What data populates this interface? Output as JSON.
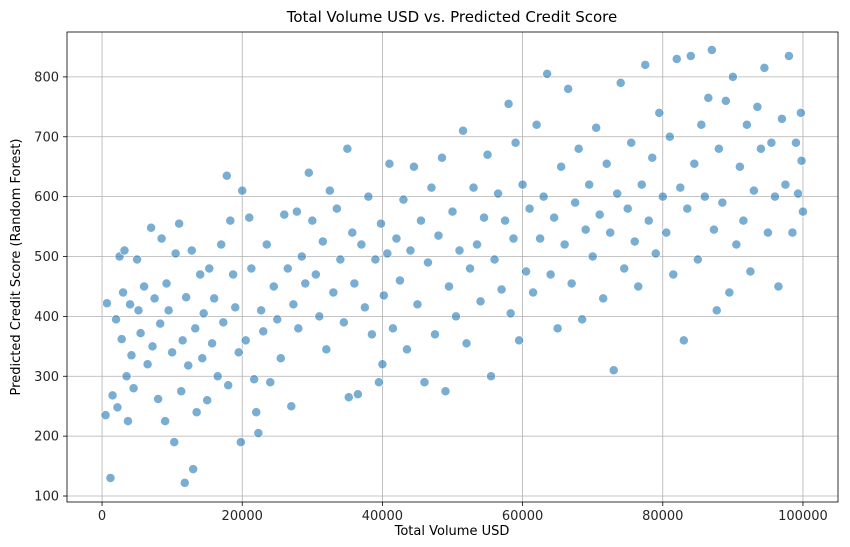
{
  "chart_data": {
    "type": "scatter",
    "title": "Total Volume USD vs. Predicted Credit Score",
    "xlabel": "Total Volume USD",
    "ylabel": "Predicted Credit Score (Random Forest)",
    "xlim": [
      -5000,
      105000
    ],
    "ylim": [
      90,
      875
    ],
    "xticks": [
      0,
      20000,
      40000,
      60000,
      80000,
      100000
    ],
    "yticks": [
      100,
      200,
      300,
      400,
      500,
      600,
      700,
      800
    ],
    "grid": true,
    "point_color": "#1f77b4",
    "point_edge_color": "#ffffff",
    "series": [
      {
        "points": [
          [
            500,
            235
          ],
          [
            700,
            422
          ],
          [
            1200,
            130
          ],
          [
            1500,
            268
          ],
          [
            2000,
            395
          ],
          [
            2200,
            248
          ],
          [
            2500,
            500
          ],
          [
            2800,
            362
          ],
          [
            3000,
            440
          ],
          [
            3200,
            510
          ],
          [
            3500,
            300
          ],
          [
            3700,
            225
          ],
          [
            4000,
            420
          ],
          [
            4200,
            335
          ],
          [
            4500,
            280
          ],
          [
            5000,
            495
          ],
          [
            5200,
            410
          ],
          [
            5500,
            372
          ],
          [
            6000,
            450
          ],
          [
            6500,
            320
          ],
          [
            7000,
            548
          ],
          [
            7200,
            350
          ],
          [
            7500,
            430
          ],
          [
            8000,
            262
          ],
          [
            8300,
            388
          ],
          [
            8500,
            530
          ],
          [
            9000,
            225
          ],
          [
            9200,
            455
          ],
          [
            9500,
            410
          ],
          [
            10000,
            340
          ],
          [
            10300,
            190
          ],
          [
            10500,
            505
          ],
          [
            11000,
            555
          ],
          [
            11300,
            275
          ],
          [
            11500,
            360
          ],
          [
            11800,
            122
          ],
          [
            12000,
            432
          ],
          [
            12300,
            318
          ],
          [
            12800,
            510
          ],
          [
            13000,
            145
          ],
          [
            13300,
            380
          ],
          [
            13500,
            240
          ],
          [
            14000,
            470
          ],
          [
            14300,
            330
          ],
          [
            14500,
            405
          ],
          [
            15000,
            260
          ],
          [
            15300,
            480
          ],
          [
            15700,
            355
          ],
          [
            16000,
            430
          ],
          [
            16500,
            300
          ],
          [
            17000,
            520
          ],
          [
            17300,
            390
          ],
          [
            17800,
            635
          ],
          [
            18000,
            285
          ],
          [
            18300,
            560
          ],
          [
            18700,
            470
          ],
          [
            19000,
            415
          ],
          [
            19500,
            340
          ],
          [
            19800,
            190
          ],
          [
            20000,
            610
          ],
          [
            20500,
            360
          ],
          [
            21000,
            565
          ],
          [
            21300,
            480
          ],
          [
            21700,
            295
          ],
          [
            22000,
            240
          ],
          [
            22300,
            205
          ],
          [
            22700,
            410
          ],
          [
            23000,
            375
          ],
          [
            23500,
            520
          ],
          [
            24000,
            290
          ],
          [
            24500,
            450
          ],
          [
            25000,
            395
          ],
          [
            25500,
            330
          ],
          [
            26000,
            570
          ],
          [
            26500,
            480
          ],
          [
            27000,
            250
          ],
          [
            27300,
            420
          ],
          [
            27800,
            575
          ],
          [
            28000,
            380
          ],
          [
            28500,
            500
          ],
          [
            29000,
            455
          ],
          [
            29500,
            640
          ],
          [
            30000,
            560
          ],
          [
            30500,
            470
          ],
          [
            31000,
            400
          ],
          [
            31500,
            525
          ],
          [
            32000,
            345
          ],
          [
            32500,
            610
          ],
          [
            33000,
            440
          ],
          [
            33500,
            580
          ],
          [
            34000,
            495
          ],
          [
            34500,
            390
          ],
          [
            35000,
            680
          ],
          [
            35200,
            265
          ],
          [
            35700,
            540
          ],
          [
            36000,
            455
          ],
          [
            36500,
            270
          ],
          [
            37000,
            520
          ],
          [
            37500,
            415
          ],
          [
            38000,
            600
          ],
          [
            38500,
            370
          ],
          [
            39000,
            495
          ],
          [
            39500,
            290
          ],
          [
            39800,
            555
          ],
          [
            40000,
            320
          ],
          [
            40200,
            435
          ],
          [
            40700,
            505
          ],
          [
            41000,
            655
          ],
          [
            41500,
            380
          ],
          [
            42000,
            530
          ],
          [
            42500,
            460
          ],
          [
            43000,
            595
          ],
          [
            43500,
            345
          ],
          [
            44000,
            510
          ],
          [
            44500,
            650
          ],
          [
            45000,
            420
          ],
          [
            45500,
            560
          ],
          [
            46000,
            290
          ],
          [
            46500,
            490
          ],
          [
            47000,
            615
          ],
          [
            47500,
            370
          ],
          [
            48000,
            535
          ],
          [
            48500,
            665
          ],
          [
            49000,
            275
          ],
          [
            49500,
            450
          ],
          [
            50000,
            575
          ],
          [
            50500,
            400
          ],
          [
            51000,
            510
          ],
          [
            51500,
            710
          ],
          [
            52000,
            355
          ],
          [
            52500,
            480
          ],
          [
            53000,
            615
          ],
          [
            53500,
            520
          ],
          [
            54000,
            425
          ],
          [
            54500,
            565
          ],
          [
            55000,
            670
          ],
          [
            55500,
            300
          ],
          [
            56000,
            495
          ],
          [
            56500,
            605
          ],
          [
            57000,
            445
          ],
          [
            57500,
            560
          ],
          [
            58000,
            755
          ],
          [
            58300,
            405
          ],
          [
            58700,
            530
          ],
          [
            59000,
            690
          ],
          [
            59500,
            360
          ],
          [
            60000,
            620
          ],
          [
            60500,
            475
          ],
          [
            61000,
            580
          ],
          [
            61500,
            440
          ],
          [
            62000,
            720
          ],
          [
            62500,
            530
          ],
          [
            63000,
            600
          ],
          [
            63500,
            805
          ],
          [
            64000,
            470
          ],
          [
            64500,
            565
          ],
          [
            65000,
            380
          ],
          [
            65500,
            650
          ],
          [
            66000,
            520
          ],
          [
            66500,
            780
          ],
          [
            67000,
            455
          ],
          [
            67500,
            590
          ],
          [
            68000,
            680
          ],
          [
            68500,
            395
          ],
          [
            69000,
            545
          ],
          [
            69500,
            620
          ],
          [
            70000,
            500
          ],
          [
            70500,
            715
          ],
          [
            71000,
            570
          ],
          [
            71500,
            430
          ],
          [
            72000,
            655
          ],
          [
            72500,
            540
          ],
          [
            73000,
            310
          ],
          [
            73500,
            605
          ],
          [
            74000,
            790
          ],
          [
            74500,
            480
          ],
          [
            75000,
            580
          ],
          [
            75500,
            690
          ],
          [
            76000,
            525
          ],
          [
            76500,
            450
          ],
          [
            77000,
            620
          ],
          [
            77500,
            820
          ],
          [
            78000,
            560
          ],
          [
            78500,
            665
          ],
          [
            79000,
            505
          ],
          [
            79500,
            740
          ],
          [
            80000,
            600
          ],
          [
            80500,
            540
          ],
          [
            81000,
            700
          ],
          [
            81500,
            470
          ],
          [
            82000,
            830
          ],
          [
            82500,
            615
          ],
          [
            83000,
            360
          ],
          [
            83500,
            580
          ],
          [
            84000,
            835
          ],
          [
            84500,
            655
          ],
          [
            85000,
            495
          ],
          [
            85500,
            720
          ],
          [
            86000,
            600
          ],
          [
            86500,
            765
          ],
          [
            87000,
            845
          ],
          [
            87300,
            545
          ],
          [
            87700,
            410
          ],
          [
            88000,
            680
          ],
          [
            88500,
            590
          ],
          [
            89000,
            760
          ],
          [
            89500,
            440
          ],
          [
            90000,
            800
          ],
          [
            90500,
            520
          ],
          [
            91000,
            650
          ],
          [
            91500,
            560
          ],
          [
            92000,
            720
          ],
          [
            92500,
            475
          ],
          [
            93000,
            610
          ],
          [
            93500,
            750
          ],
          [
            94000,
            680
          ],
          [
            94500,
            815
          ],
          [
            95000,
            540
          ],
          [
            95500,
            690
          ],
          [
            96000,
            600
          ],
          [
            96500,
            450
          ],
          [
            97000,
            730
          ],
          [
            97500,
            620
          ],
          [
            98000,
            835
          ],
          [
            98500,
            540
          ],
          [
            99000,
            690
          ],
          [
            99300,
            605
          ],
          [
            99700,
            740
          ],
          [
            100000,
            575
          ],
          [
            99800,
            660
          ]
        ]
      }
    ]
  }
}
